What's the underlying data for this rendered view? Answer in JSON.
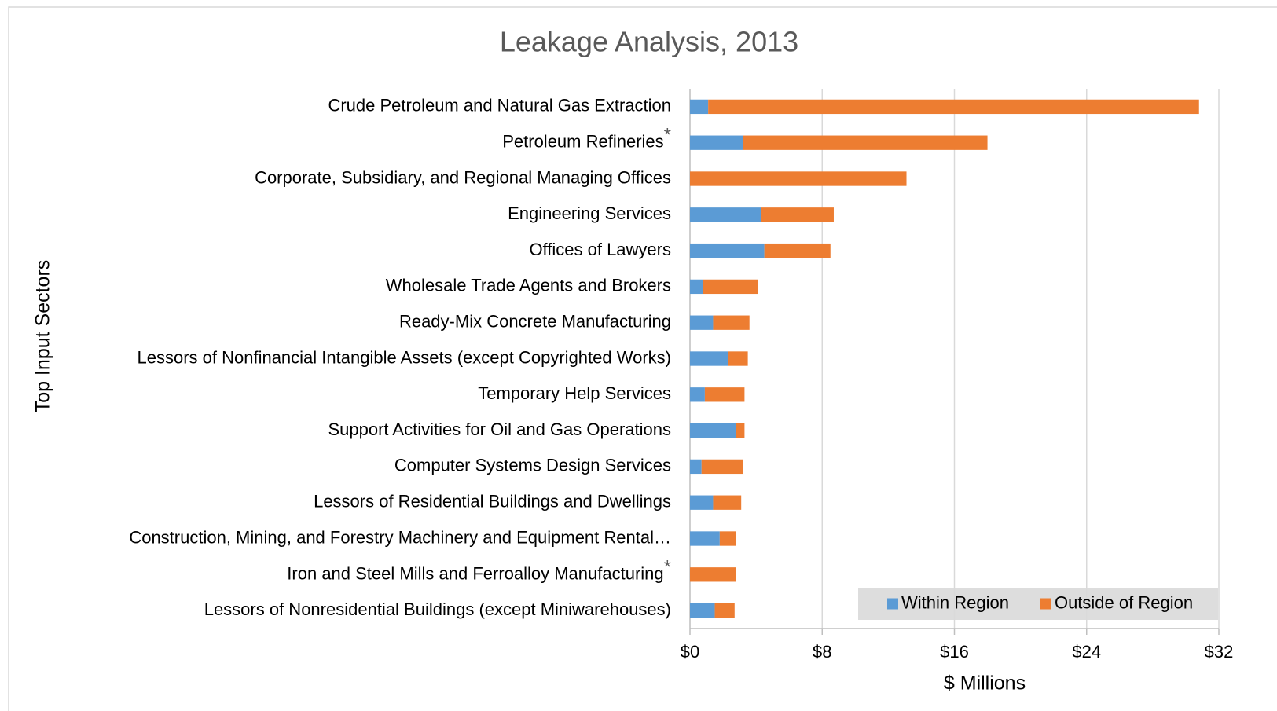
{
  "chart_data": {
    "type": "stacked-barh",
    "title": "Leakage Analysis, 2013",
    "x_label": "$ Millions",
    "y_label": "Top Input Sectors",
    "categories": [
      "Crude Petroleum and Natural Gas Extraction",
      "Petroleum Refineries*",
      "Corporate, Subsidiary, and Regional Managing Offices",
      "Engineering Services",
      "Offices of Lawyers",
      "Wholesale Trade Agents and Brokers",
      "Ready-Mix Concrete Manufacturing",
      "Lessors of Nonfinancial Intangible Assets (except Copyrighted Works)",
      "Temporary Help Services",
      "Support Activities for Oil and Gas Operations",
      "Computer Systems Design Services",
      "Lessors of Residential Buildings and Dwellings",
      "Construction, Mining, and Forestry Machinery and Equipment Rental…",
      "Iron and Steel Mills and Ferroalloy Manufacturing*",
      "Lessors of Nonresidential Buildings (except Miniwarehouses)"
    ],
    "series": [
      {
        "name": "Within Region",
        "color": "#5b9bd5",
        "values": [
          1.1,
          3.2,
          0,
          4.3,
          4.5,
          0.8,
          1.4,
          2.3,
          0.9,
          2.8,
          0.7,
          1.4,
          1.8,
          0,
          1.5
        ]
      },
      {
        "name": "Outside of Region",
        "color": "#ed7d31",
        "values": [
          29.7,
          14.8,
          13.1,
          4.4,
          4.0,
          3.3,
          2.2,
          1.2,
          2.4,
          0.5,
          2.5,
          1.7,
          1.0,
          2.8,
          1.2
        ]
      }
    ],
    "xlim": [
      0,
      32
    ],
    "xticks": [
      {
        "value": 0,
        "label": "$0"
      },
      {
        "value": 8,
        "label": "$8"
      },
      {
        "value": 16,
        "label": "$16"
      },
      {
        "value": 24,
        "label": "$24"
      },
      {
        "value": 32,
        "label": "$32"
      }
    ],
    "grid": true,
    "legend": "lower-right"
  }
}
